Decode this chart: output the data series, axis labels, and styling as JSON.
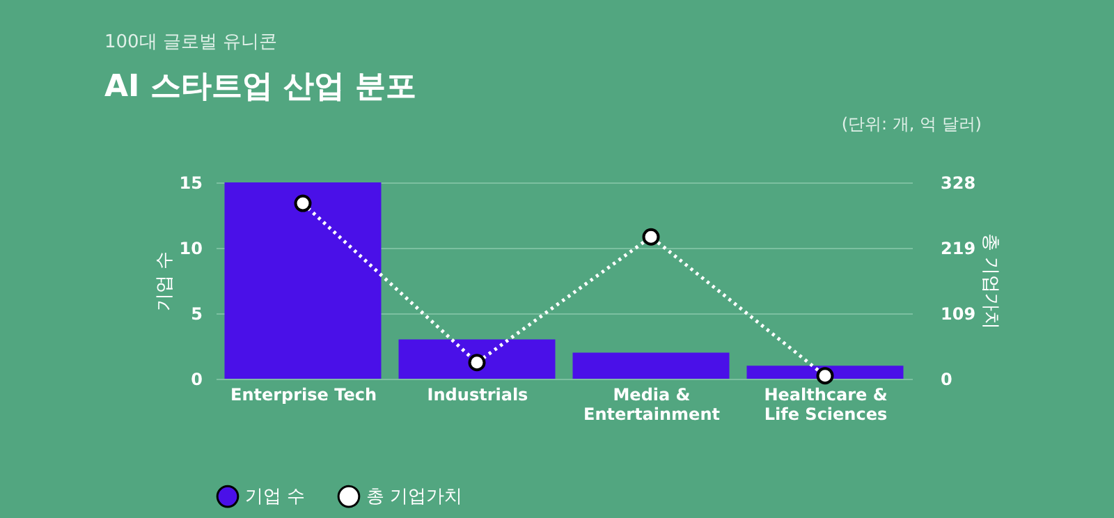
{
  "chart_data": {
    "type": "bar",
    "title": "AI 스타트업 산업 분포",
    "subtitle": "100대 글로벌 유니콘",
    "annotations": [
      "(단위: 개, 억 달러)"
    ],
    "ylabel": "기업 수",
    "y2label": "총 기업가치",
    "categories": [
      "Enterprise Tech",
      "Industrials",
      "Media & Entertainment",
      "Healthcare & Life Sciences"
    ],
    "series": [
      {
        "name": "기업 수",
        "color": "#4a10e8",
        "values": [
          15,
          3,
          2,
          1
        ]
      },
      {
        "name": "총 기업가치",
        "type": "line",
        "axis": "y2",
        "color": "#ffffff",
        "line_style": "dotted",
        "marker": "circle",
        "values": [
          293,
          27,
          237,
          5
        ]
      }
    ],
    "ylim": [
      0,
      15
    ],
    "yticks": [
      0,
      5,
      10,
      15
    ],
    "y2lim": [
      0,
      328
    ],
    "y2ticks": [
      0,
      109,
      219,
      328
    ],
    "grid": "y",
    "legend": "bottom"
  }
}
